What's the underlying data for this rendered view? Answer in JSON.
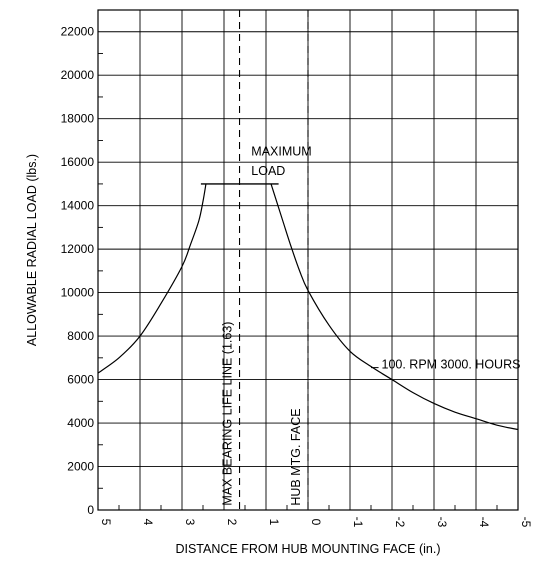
{
  "chart_data": {
    "type": "line",
    "xlabel": "DISTANCE FROM HUB MOUNTING FACE (in.)",
    "ylabel": "ALLOWABLE RADIAL LOAD (lbs.)",
    "xlim": [
      5,
      -5
    ],
    "ylim": [
      0,
      23000
    ],
    "x_ticks": [
      "5",
      "4",
      "3",
      "2",
      "1",
      "0",
      "-1",
      "-2",
      "-3",
      "-4",
      "-5"
    ],
    "x_tick_values": [
      5,
      4,
      3,
      2,
      1,
      0,
      -1,
      -2,
      -3,
      -4,
      -5
    ],
    "y_ticks": [
      "0",
      "2000",
      "4000",
      "6000",
      "8000",
      "10000",
      "12000",
      "14000",
      "16000",
      "18000",
      "20000",
      "22000"
    ],
    "y_tick_values": [
      0,
      2000,
      4000,
      6000,
      8000,
      10000,
      12000,
      14000,
      16000,
      18000,
      20000,
      22000
    ],
    "grid": true,
    "series": [
      {
        "label": "100. RPM 3000. HOURS",
        "left_branch": {
          "x": [
            5.0,
            4.5,
            4.0,
            3.5,
            3.0,
            2.8,
            2.6,
            2.5,
            2.43
          ],
          "y": [
            6300,
            7000,
            8000,
            9500,
            11200,
            12200,
            13300,
            14200,
            15000
          ]
        },
        "right_branch": {
          "x": [
            0.88,
            0.6,
            0.4,
            0.2,
            0.0,
            -0.5,
            -1.0,
            -1.5,
            -2.0,
            -2.5,
            -3.0,
            -3.5,
            -4.0,
            -4.5,
            -5.0
          ],
          "y": [
            15000,
            13300,
            12100,
            11000,
            10100,
            8500,
            7300,
            6600,
            6000,
            5400,
            4900,
            4500,
            4200,
            3900,
            3700
          ]
        }
      }
    ],
    "max_load": {
      "label_line1": "MAXIMUM",
      "label_line2": "LOAD",
      "value": 15000,
      "x_from": 2.55,
      "x_to": 0.7
    },
    "reference_lines": [
      {
        "label": "MAX BEARING LIFE LINE (1.63)",
        "x": 1.63
      },
      {
        "label": "HUB MTG. FACE",
        "x": 0
      }
    ],
    "colors": {
      "line": "#000000",
      "grid": "#000000",
      "background": "#ffffff"
    }
  }
}
